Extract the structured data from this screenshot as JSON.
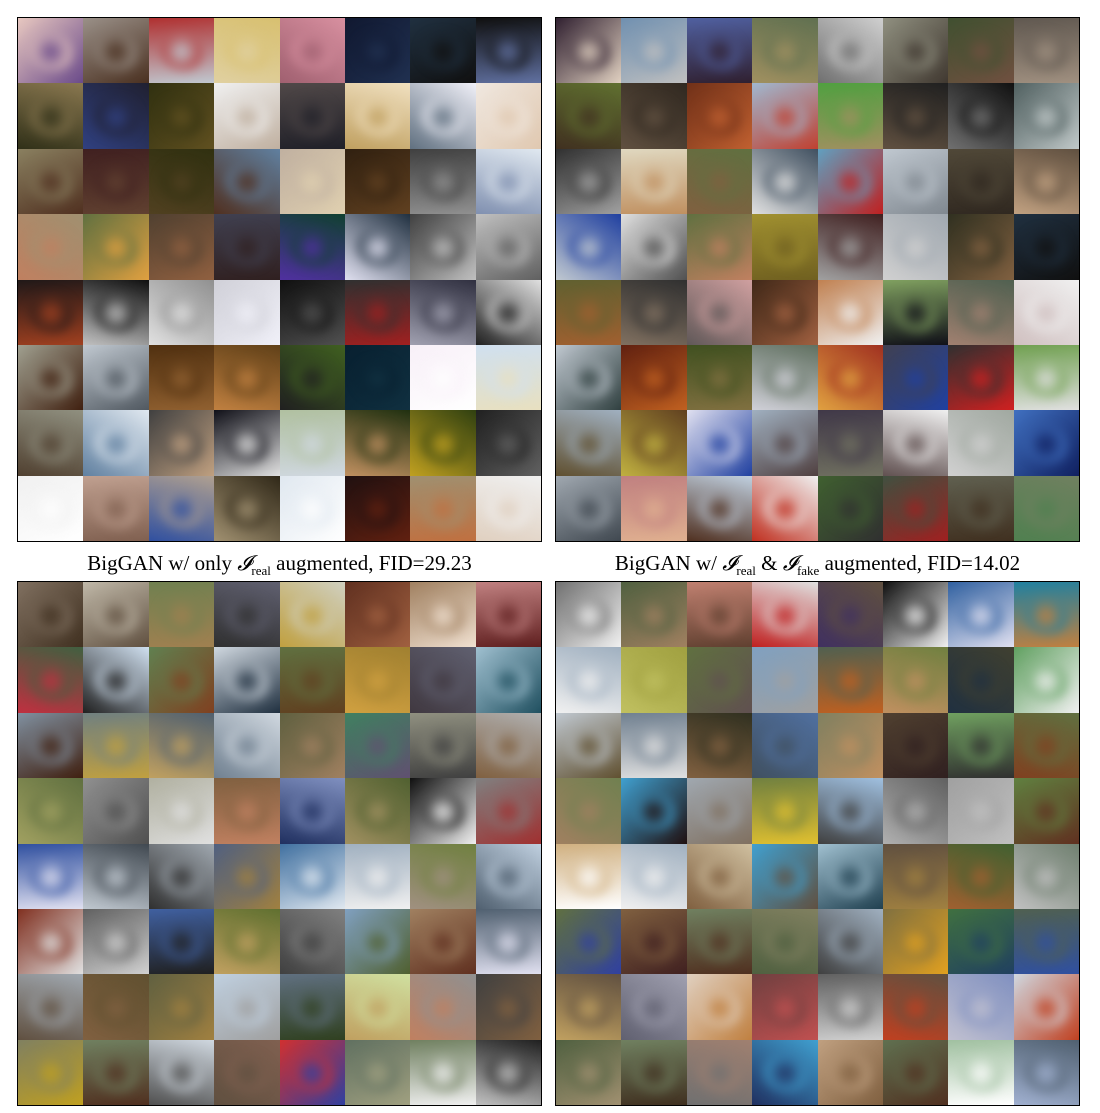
{
  "captions": {
    "left": {
      "prefix": "BigGAN w/ only ",
      "symbol": "𝓘",
      "sub": "real",
      "suffix": " augmented, FID=29.23"
    },
    "right": {
      "prefix": "BigGAN w/ ",
      "symbol1": "𝓘",
      "sub1": "real",
      "amp": " & ",
      "symbol2": "𝓘",
      "sub2": "fake",
      "suffix": " augmented, FID=14.02"
    }
  },
  "grids": {
    "panel_tl": {
      "tiles": [
        [
          "#e8c8c0",
          "#6a4a8a"
        ],
        [
          "#9a9088",
          "#4a3020"
        ],
        [
          "#b03030",
          "#c0c8d0"
        ],
        [
          "#d8c070",
          "#e0d0a0"
        ],
        [
          "#d890a0",
          "#a06070"
        ],
        [
          "#101830",
          "#203050"
        ],
        [
          "#203040",
          "#101010"
        ],
        [
          "#101010",
          "#6070a0"
        ],
        [
          "#8a7850",
          "#303018"
        ],
        [
          "#202030",
          "#304080"
        ],
        [
          "#303010",
          "#605020"
        ],
        [
          "#f0f0f0",
          "#c0b0a0"
        ],
        [
          "#504848",
          "#202028"
        ],
        [
          "#f0e0c0",
          "#c0a060"
        ],
        [
          "#f0f0f8",
          "#607080"
        ],
        [
          "#f0e8e0",
          "#e0c8b0"
        ],
        [
          "#8a8060",
          "#503020"
        ],
        [
          "#402020",
          "#604030"
        ],
        [
          "#303010",
          "#504020"
        ],
        [
          "#6080a0",
          "#503020"
        ],
        [
          "#c0b0a0",
          "#e0d0b0"
        ],
        [
          "#302010",
          "#604020"
        ],
        [
          "#404040",
          "#909090"
        ],
        [
          "#e0e8f0",
          "#8090b0"
        ],
        [
          "#a09070",
          "#c08060"
        ],
        [
          "#607040",
          "#e0a040"
        ],
        [
          "#504030",
          "#906040"
        ],
        [
          "#404050",
          "#302020"
        ],
        [
          "#104030",
          "#5030a0"
        ],
        [
          "#203040",
          "#e0e0f0"
        ],
        [
          "#404040",
          "#c0c0c0"
        ],
        [
          "#c0c0c0",
          "#606060"
        ],
        [
          "#201818",
          "#a04020"
        ],
        [
          "#101010",
          "#c0c0c0"
        ],
        [
          "#909090",
          "#e0e0e0"
        ],
        [
          "#d0d0d8",
          "#f0f0f8"
        ],
        [
          "#101010",
          "#505050"
        ],
        [
          "#303030",
          "#a02020"
        ],
        [
          "#303040",
          "#a0a0b0"
        ],
        [
          "#e0e0e0",
          "#202020"
        ],
        [
          "#a0a090",
          "#402010"
        ],
        [
          "#c0c8d0",
          "#505860"
        ],
        [
          "#503010",
          "#906030"
        ],
        [
          "#604018",
          "#c08040"
        ],
        [
          "#406020",
          "#202020"
        ],
        [
          "#082030",
          "#103040"
        ],
        [
          "#f8f0f8",
          "#ffffff"
        ],
        [
          "#d0e0f0",
          "#e8e0c0"
        ],
        [
          "#909080",
          "#504030"
        ],
        [
          "#e0e8f0",
          "#6080a0"
        ],
        [
          "#404040",
          "#c0a080"
        ],
        [
          "#101018",
          "#e0e0e0"
        ],
        [
          "#b0c0a0",
          "#d0d8e0"
        ],
        [
          "#203010",
          "#c09060"
        ],
        [
          "#304010",
          "#c0a020"
        ],
        [
          "#202020",
          "#606060"
        ],
        [
          "#f0f0f0",
          "#ffffff"
        ],
        [
          "#c0a090",
          "#806050"
        ],
        [
          "#b0a090",
          "#3050a0"
        ],
        [
          "#302818",
          "#a09070"
        ],
        [
          "#e0e8f0",
          "#ffffff"
        ],
        [
          "#201010",
          "#602010"
        ],
        [
          "#a09070",
          "#c07040"
        ],
        [
          "#f0f0f0",
          "#e0d0c0"
        ]
      ]
    },
    "panel_tr": {
      "tiles": [
        [
          "#302030",
          "#e0d0c0"
        ],
        [
          "#7090b0",
          "#c0c0c0"
        ],
        [
          "#5060a0",
          "#302030"
        ],
        [
          "#607050",
          "#a09060"
        ],
        [
          "#d0d0d0",
          "#707070"
        ],
        [
          "#909080",
          "#403830"
        ],
        [
          "#405030",
          "#705040"
        ],
        [
          "#605850",
          "#a09080"
        ],
        [
          "#607030",
          "#403020"
        ],
        [
          "#302820",
          "#605040"
        ],
        [
          "#703018",
          "#c06030"
        ],
        [
          "#a0b8d0",
          "#c04030"
        ],
        [
          "#50a040",
          "#a09060"
        ],
        [
          "#202020",
          "#605040"
        ],
        [
          "#101010",
          "#707070"
        ],
        [
          "#506060",
          "#c0c8c8"
        ],
        [
          "#303030",
          "#a0a0a0"
        ],
        [
          "#e0d8c0",
          "#c09060"
        ],
        [
          "#607040",
          "#806040"
        ],
        [
          "#405060",
          "#e0e0e0"
        ],
        [
          "#60a0c0",
          "#c02020"
        ],
        [
          "#c0c8d0",
          "#808890"
        ],
        [
          "#504838",
          "#302820"
        ],
        [
          "#605040",
          "#c0a080"
        ],
        [
          "#2040a0",
          "#c0c8d0"
        ],
        [
          "#e0e0e0",
          "#505050"
        ],
        [
          "#607040",
          "#c08060"
        ],
        [
          "#a09030",
          "#706020"
        ],
        [
          "#402020",
          "#a0a0a0"
        ],
        [
          "#a0a8b0",
          "#d0d0d0"
        ],
        [
          "#303020",
          "#806040"
        ],
        [
          "#203040",
          "#101010"
        ],
        [
          "#606030",
          "#a06030"
        ],
        [
          "#303030",
          "#807060"
        ],
        [
          "#d0a0a0",
          "#605858"
        ],
        [
          "#402818",
          "#a06040"
        ],
        [
          "#c08050",
          "#f0f0f0"
        ],
        [
          "#80a060",
          "#101018"
        ],
        [
          "#506050",
          "#a08070"
        ],
        [
          "#f0f0f0",
          "#d0c0c0"
        ],
        [
          "#c0c8d0",
          "#304040"
        ],
        [
          "#602010",
          "#c06020"
        ],
        [
          "#405020",
          "#807040"
        ],
        [
          "#607060",
          "#d0d0d8"
        ],
        [
          "#a03020",
          "#e0a040"
        ],
        [
          "#404050",
          "#2040a0"
        ],
        [
          "#303030",
          "#d02020"
        ],
        [
          "#70a050",
          "#e0e0e0"
        ],
        [
          "#a0b0c0",
          "#605030"
        ],
        [
          "#604020",
          "#c0b040"
        ],
        [
          "#e0e0f0",
          "#2040a0"
        ],
        [
          "#a0b0c0",
          "#504040"
        ],
        [
          "#403848",
          "#707060"
        ],
        [
          "#f0f0f0",
          "#605050"
        ],
        [
          "#a0a8a0",
          "#d0d0d0"
        ],
        [
          "#4070c0",
          "#102060"
        ],
        [
          "#a0a8b0",
          "#404850"
        ],
        [
          "#c08080",
          "#e0b090"
        ],
        [
          "#c0d0e0",
          "#503020"
        ],
        [
          "#f0f0f0",
          "#c03020"
        ],
        [
          "#406030",
          "#303030"
        ],
        [
          "#405040",
          "#a02020"
        ],
        [
          "#606050",
          "#403020"
        ],
        [
          "#708060",
          "#508050"
        ]
      ]
    },
    "panel_bl": {
      "tiles": [
        [
          "#807060",
          "#403020"
        ],
        [
          "#c0b8a8",
          "#605040"
        ],
        [
          "#708050",
          "#a08050"
        ],
        [
          "#606070",
          "#303030"
        ],
        [
          "#d0d0c0",
          "#c0a040"
        ],
        [
          "#603020",
          "#a06040"
        ],
        [
          "#a08060",
          "#f0e0d0"
        ],
        [
          "#c08080",
          "#602020"
        ],
        [
          "#406040",
          "#c03040"
        ],
        [
          "#d0e0f0",
          "#202020"
        ],
        [
          "#608050",
          "#804020"
        ],
        [
          "#d0d8e0",
          "#203040"
        ],
        [
          "#607040",
          "#604020"
        ],
        [
          "#a08030",
          "#d0a040"
        ],
        [
          "#606070",
          "#403840"
        ],
        [
          "#a0c0d0",
          "#205060"
        ],
        [
          "#8090a0",
          "#402010"
        ],
        [
          "#708080",
          "#c0a040"
        ],
        [
          "#506070",
          "#c0a060"
        ],
        [
          "#d0d8e0",
          "#708090"
        ],
        [
          "#606040",
          "#a08060"
        ],
        [
          "#408060",
          "#605070"
        ],
        [
          "#909080",
          "#404040"
        ],
        [
          "#b0b0b0",
          "#806040"
        ],
        [
          "#607040",
          "#a0a060"
        ],
        [
          "#909090",
          "#505050"
        ],
        [
          "#b0b0a0",
          "#e0e0e0"
        ],
        [
          "#806040",
          "#c08060"
        ],
        [
          "#8090c0",
          "#203060"
        ],
        [
          "#506030",
          "#a09060"
        ],
        [
          "#101010",
          "#f0f0f0"
        ],
        [
          "#808080",
          "#a03030"
        ],
        [
          "#3050a0",
          "#e0e0f0"
        ],
        [
          "#404850",
          "#c0c8d0"
        ],
        [
          "#a0a8b0",
          "#303030"
        ],
        [
          "#506080",
          "#a08040"
        ],
        [
          "#4070a0",
          "#e0e8f0"
        ],
        [
          "#a0b0c0",
          "#f0f0f0"
        ],
        [
          "#708040",
          "#a09080"
        ],
        [
          "#c0d0e0",
          "#506070"
        ],
        [
          "#803020",
          "#e0e0e0"
        ],
        [
          "#606060",
          "#d0d0d0"
        ],
        [
          "#4060a0",
          "#202020"
        ],
        [
          "#607030",
          "#c0a060"
        ],
        [
          "#808080",
          "#404040"
        ],
        [
          "#80a0c0",
          "#506030"
        ],
        [
          "#a08060",
          "#603020"
        ],
        [
          "#506070",
          "#e0e0f0"
        ],
        [
          "#a0a8b0",
          "#605040"
        ],
        [
          "#605030",
          "#806040"
        ],
        [
          "#606040",
          "#a08040"
        ],
        [
          "#c0d0e0",
          "#a0a0a0"
        ],
        [
          "#607080",
          "#304020"
        ],
        [
          "#d0e0a0",
          "#c0a060"
        ],
        [
          "#909090",
          "#c08060"
        ],
        [
          "#404040",
          "#806040"
        ],
        [
          "#808060",
          "#c0a020"
        ],
        [
          "#708060",
          "#503020"
        ],
        [
          "#d0d8e0",
          "#505050"
        ],
        [
          "#806050",
          "#605040"
        ],
        [
          "#d03030",
          "#3040a0"
        ],
        [
          "#607060",
          "#a0a080"
        ],
        [
          "#708060",
          "#f0f0f0"
        ],
        [
          "#202020",
          "#c0c0c0"
        ]
      ]
    },
    "panel_br": {
      "tiles": [
        [
          "#707070",
          "#f0f0f0"
        ],
        [
          "#506040",
          "#a08060"
        ],
        [
          "#c08070",
          "#604030"
        ],
        [
          "#e0e0e0",
          "#c02020"
        ],
        [
          "#605040",
          "#403060"
        ],
        [
          "#101010",
          "#f0f0f0"
        ],
        [
          "#3060a0",
          "#e0e0f0"
        ],
        [
          "#2080a0",
          "#c08040"
        ],
        [
          "#a0b0c0",
          "#f0f0f0"
        ],
        [
          "#a0a040",
          "#c0c060"
        ],
        [
          "#607040",
          "#605050"
        ],
        [
          "#80a0c0",
          "#a0a0a0"
        ],
        [
          "#506050",
          "#c06020"
        ],
        [
          "#708040",
          "#c09060"
        ],
        [
          "#404030",
          "#203040"
        ],
        [
          "#60a060",
          "#f0f0f0"
        ],
        [
          "#c0c8d0",
          "#605030"
        ],
        [
          "#708090",
          "#e0e0e0"
        ],
        [
          "#303020",
          "#806040"
        ],
        [
          "#5070a0",
          "#405060"
        ],
        [
          "#808060",
          "#c09060"
        ],
        [
          "#504030",
          "#302020"
        ],
        [
          "#70a060",
          "#303030"
        ],
        [
          "#607040",
          "#804020"
        ],
        [
          "#708050",
          "#a08060"
        ],
        [
          "#40a0d0",
          "#201010"
        ],
        [
          "#a0a8b0",
          "#807060"
        ],
        [
          "#708040",
          "#e0c030"
        ],
        [
          "#a0c0e0",
          "#404040"
        ],
        [
          "#606060",
          "#b0b0b0"
        ],
        [
          "#a0a0a0",
          "#c0c0c0"
        ],
        [
          "#608040",
          "#603020"
        ],
        [
          "#d0b080",
          "#ffffff"
        ],
        [
          "#a0b0c0",
          "#f0f0f0"
        ],
        [
          "#d0c0a0",
          "#806040"
        ],
        [
          "#40a0d0",
          "#605040"
        ],
        [
          "#a0c0d0",
          "#204050"
        ],
        [
          "#605040",
          "#a08040"
        ],
        [
          "#406030",
          "#a06030"
        ],
        [
          "#708070",
          "#c0c0c0"
        ],
        [
          "#607040",
          "#3040a0"
        ],
        [
          "#806040",
          "#402020"
        ],
        [
          "#708060",
          "#503020"
        ],
        [
          "#808060",
          "#506040"
        ],
        [
          "#a0b0c0",
          "#404040"
        ],
        [
          "#807040",
          "#e0a020"
        ],
        [
          "#407040",
          "#204060"
        ],
        [
          "#506050",
          "#3050a0"
        ],
        [
          "#605040",
          "#c0a060"
        ],
        [
          "#a0a0b0",
          "#606070"
        ],
        [
          "#e0d0c0",
          "#c08040"
        ],
        [
          "#704040",
          "#c05050"
        ],
        [
          "#606060",
          "#d0d0d0"
        ],
        [
          "#605040",
          "#c04020"
        ],
        [
          "#8090c0",
          "#c0c0d0"
        ],
        [
          "#d0d8e0",
          "#c04020"
        ],
        [
          "#506040",
          "#a09070"
        ],
        [
          "#708060",
          "#403020"
        ],
        [
          "#a08070",
          "#707070"
        ],
        [
          "#40a0d0",
          "#203060"
        ],
        [
          "#c0a080",
          "#806040"
        ],
        [
          "#607050",
          "#503020"
        ],
        [
          "#a0c0a0",
          "#ffffff"
        ],
        [
          "#506070",
          "#a0b0d0"
        ]
      ]
    }
  }
}
